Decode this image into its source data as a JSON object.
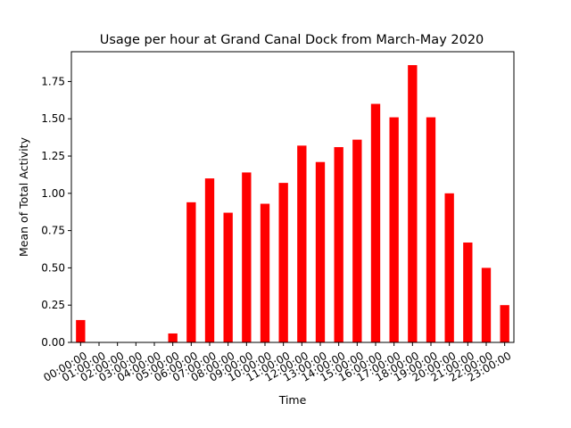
{
  "chart_data": {
    "type": "bar",
    "title": "Usage per hour at Grand Canal Dock from March-May 2020",
    "xlabel": "Time",
    "ylabel": "Mean of Total Activity",
    "categories": [
      "00:00:00",
      "01:00:00",
      "02:00:00",
      "03:00:00",
      "04:00:00",
      "05:00:00",
      "06:00:00",
      "07:00:00",
      "08:00:00",
      "09:00:00",
      "10:00:00",
      "11:00:00",
      "12:00:00",
      "13:00:00",
      "14:00:00",
      "15:00:00",
      "16:00:00",
      "17:00:00",
      "18:00:00",
      "19:00:00",
      "20:00:00",
      "21:00:00",
      "22:00:00",
      "23:00:00"
    ],
    "values": [
      0.15,
      0.0,
      0.0,
      0.0,
      0.0,
      0.06,
      0.94,
      1.1,
      0.87,
      1.14,
      0.93,
      1.07,
      1.32,
      1.21,
      1.31,
      1.36,
      1.6,
      1.51,
      1.86,
      1.51,
      1.0,
      0.67,
      0.5,
      0.25
    ],
    "ylim": [
      0,
      1.95
    ],
    "yticks": [
      "0.00",
      "0.25",
      "0.50",
      "0.75",
      "1.00",
      "1.25",
      "1.50",
      "1.75"
    ],
    "bar_color": "#ff0000",
    "grid": false,
    "legend": "none"
  }
}
